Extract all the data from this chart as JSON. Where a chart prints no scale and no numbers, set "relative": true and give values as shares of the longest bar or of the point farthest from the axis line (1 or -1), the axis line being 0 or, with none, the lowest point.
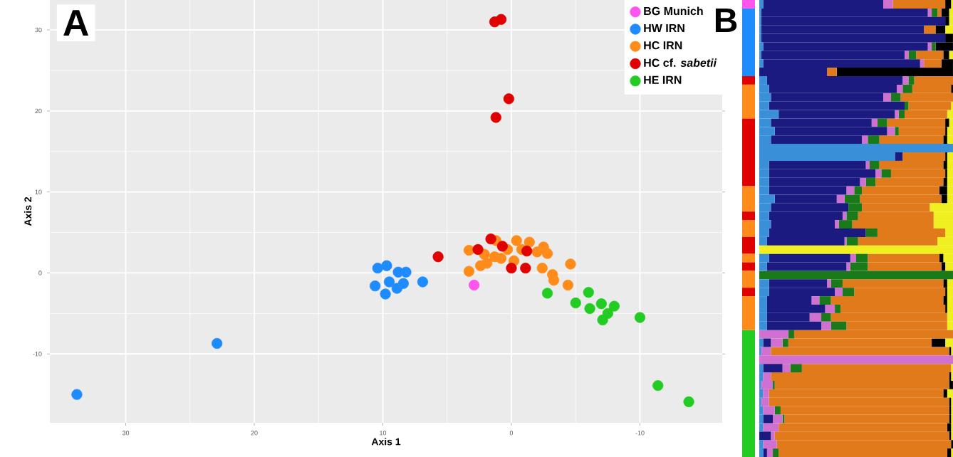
{
  "chart_data": [
    {
      "type": "scatter",
      "xlabel": "Axis 1",
      "ylabel": "Axis 2",
      "xlim": [
        35.9,
        -16.4
      ],
      "ylim": [
        -18.5,
        33.7
      ],
      "xticks": [
        30,
        20,
        10,
        0,
        -10
      ],
      "yticks": [
        -10,
        0,
        10,
        20,
        30
      ],
      "grid": true,
      "legend": "top right",
      "marker": "circle",
      "annotations": [
        "A"
      ],
      "series": [
        {
          "name": "BG Munich",
          "color": "#ff55ee",
          "x": [
            2.9
          ],
          "values": [
            -1.5
          ]
        },
        {
          "name": "HW IRN",
          "color": "#1e8cff",
          "x": [
            33.8,
            22.9,
            10.4,
            9.7,
            10.6,
            9.8,
            9.5,
            8.8,
            8.2,
            8.4,
            8.9,
            6.9
          ],
          "values": [
            -15.0,
            -8.7,
            0.6,
            0.9,
            -1.6,
            -2.6,
            -1.1,
            0.1,
            0.1,
            -1.3,
            -1.9,
            -1.1
          ]
        },
        {
          "name": "HC IRN",
          "color": "#ff8c1a",
          "x": [
            3.3,
            3.3,
            2.4,
            1.9,
            1.3,
            1.2,
            0.3,
            -0.4,
            -0.8,
            -1.4,
            -0.2,
            -2.0,
            -2.5,
            -2.8,
            -2.4,
            -3.2,
            -3.3,
            -4.4,
            -4.6,
            0.8,
            2.1
          ],
          "values": [
            2.8,
            0.2,
            0.9,
            1.2,
            2.0,
            4.0,
            2.9,
            4.0,
            2.9,
            3.8,
            1.5,
            2.6,
            3.2,
            2.4,
            0.6,
            -0.2,
            -0.9,
            -1.5,
            1.1,
            1.8,
            2.3
          ]
        },
        {
          "name": "HC cf. *sabetii*",
          "color": "#e00000",
          "x": [
            1.3,
            0.8,
            0.2,
            1.2,
            5.7,
            2.6,
            1.6,
            0.7,
            -1.2,
            0.0,
            -1.1
          ],
          "values": [
            31.0,
            31.3,
            21.5,
            19.2,
            2.0,
            2.9,
            4.2,
            3.3,
            2.7,
            0.6,
            0.6
          ]
        },
        {
          "name": "HE IRN",
          "color": "#22cc22",
          "x": [
            -2.8,
            -5.0,
            -6.0,
            -6.1,
            -7.0,
            -7.1,
            -7.5,
            -8.0,
            -10.0,
            -11.4,
            -13.8
          ],
          "values": [
            -2.5,
            -3.7,
            -2.4,
            -4.4,
            -3.8,
            -5.8,
            -5.0,
            -4.1,
            -5.5,
            -13.9,
            -15.9
          ]
        }
      ]
    },
    {
      "type": "bar",
      "orientation": "horizontal",
      "stacked": true,
      "relative": true,
      "annotations": [
        "B"
      ],
      "categories": [
        null,
        null,
        null,
        null,
        null,
        null,
        null,
        null,
        null,
        null,
        null,
        null,
        null,
        null,
        null,
        null,
        null,
        null,
        null,
        null,
        null,
        null,
        null,
        null,
        null,
        null,
        null,
        null,
        null,
        null,
        null,
        null,
        null,
        null,
        null,
        null,
        null,
        null,
        null,
        null,
        null,
        null,
        null,
        null,
        null,
        null,
        null,
        null,
        null,
        null,
        null,
        null,
        null,
        null
      ],
      "series": [
        {
          "color": "#3a8fd9",
          "values": [
            0.02,
            0.01,
            0.01,
            0.01,
            0.01,
            0.02,
            0.01,
            0.02,
            0,
            0.04,
            0.05,
            0.06,
            0.05,
            0.1,
            0.06,
            0.08,
            0.06,
            1,
            0.7,
            0.05,
            0.05,
            0.05,
            0.05,
            0.08,
            0.06,
            0.05,
            0.06,
            0.05,
            0.04,
            0,
            0.05,
            0.04,
            0,
            0.05,
            0.05,
            0.04,
            0.04,
            0.04,
            0.04,
            0,
            0.02,
            0.01,
            0,
            0.02,
            0.02,
            0.01,
            0.02,
            0.01,
            0.02,
            0.02,
            0.02,
            0,
            0.02,
            0.02
          ]
        },
        {
          "color": "#1a1a80",
          "values": [
            0.62,
            0.86,
            0.95,
            0.84,
            0.95,
            0.85,
            0.74,
            0.81,
            0.35,
            0.7,
            0.66,
            0.58,
            0.7,
            0.6,
            0.52,
            0.58,
            0.47,
            0,
            0.04,
            0.5,
            0.55,
            0.47,
            0.4,
            0.32,
            0.4,
            0.38,
            0.33,
            0.5,
            0.4,
            0,
            0.42,
            0.41,
            0,
            0.3,
            0.34,
            0.23,
            0.3,
            0.22,
            0.28,
            0,
            0.04,
            0,
            0,
            0.1,
            0,
            0,
            0,
            0,
            0,
            0.05,
            0,
            0.06,
            0,
            0.02
          ]
        },
        {
          "color": "#d070d0",
          "values": [
            0.05,
            0.02,
            0,
            0,
            0,
            0.02,
            0.02,
            0.02,
            0,
            0.03,
            0.03,
            0.04,
            0,
            0.02,
            0.03,
            0.04,
            0.03,
            0,
            0,
            0.02,
            0.03,
            0.03,
            0.04,
            0.04,
            0,
            0.02,
            0.02,
            0,
            0.01,
            0,
            0.03,
            0.02,
            0,
            0.02,
            0.04,
            0.04,
            0.05,
            0.06,
            0.05,
            0.15,
            0.06,
            0.05,
            1,
            0.04,
            0.04,
            0.06,
            0.03,
            0.04,
            0.06,
            0.05,
            0.08,
            0.02,
            0.07,
            0.03
          ]
        },
        {
          "color": "#1a7a1a",
          "values": [
            0,
            0.03,
            0,
            0,
            0,
            0.02,
            0.04,
            0,
            0,
            0.03,
            0.05,
            0.05,
            0.02,
            0.03,
            0.05,
            0.02,
            0.06,
            0,
            0,
            0.05,
            0.05,
            0.05,
            0.04,
            0.08,
            0.07,
            0.06,
            0.07,
            0.06,
            0.06,
            0,
            0.06,
            0.09,
            1,
            0.06,
            0.06,
            0.06,
            0.03,
            0.05,
            0.08,
            0.03,
            0.03,
            0,
            0,
            0.06,
            0,
            0.01,
            0,
            0,
            0.03,
            0.01,
            0,
            0,
            0,
            0.03
          ]
        },
        {
          "color": "#e07a1a",
          "values": [
            0.27,
            0.02,
            0,
            0.06,
            0,
            0,
            0.14,
            0.09,
            0.05,
            0.2,
            0.2,
            0.27,
            0.22,
            0.22,
            0.3,
            0.24,
            0.33,
            0,
            0.22,
            0.33,
            0.28,
            0.35,
            0.4,
            0.42,
            0.35,
            0.39,
            0.42,
            0.35,
            0.41,
            0,
            0.37,
            0.38,
            0,
            0.52,
            0.47,
            0.58,
            0.54,
            0.6,
            0.52,
            0.82,
            0.74,
            0.92,
            0,
            0.77,
            0.92,
            0.9,
            0.9,
            0.93,
            0.87,
            0.85,
            0.87,
            0.9,
            0.9,
            0.87
          ]
        },
        {
          "color": "#000000",
          "values": [
            0.03,
            0.04,
            0.02,
            0.05,
            0.04,
            0.09,
            0.03,
            0.06,
            0.6,
            0,
            0.01,
            0,
            0,
            0,
            0.02,
            0.01,
            0.02,
            0,
            0.01,
            0.02,
            0.01,
            0.02,
            0.04,
            0.03,
            0,
            0,
            0,
            0,
            0,
            0,
            0.02,
            0.02,
            0,
            0.02,
            0.01,
            0.02,
            0.01,
            0,
            0,
            0,
            0.07,
            0.01,
            0,
            0,
            0.01,
            0.02,
            0.02,
            0.01,
            0.01,
            0.01,
            0.02,
            0.01,
            0.01,
            0.02
          ]
        },
        {
          "color": "#f0f020",
          "values": [
            0.01,
            0.02,
            0.02,
            0.04,
            0,
            0,
            0.02,
            0,
            0,
            0,
            0,
            0,
            0.01,
            0.03,
            0.02,
            0.03,
            0.03,
            0,
            0.03,
            0.03,
            0.03,
            0.03,
            0.03,
            0.03,
            0.12,
            0.1,
            0.1,
            0.04,
            0.08,
            1,
            0.05,
            0.04,
            0,
            0.03,
            0.03,
            0.03,
            0.03,
            0.03,
            0.03,
            0,
            0.04,
            0.01,
            0,
            0.01,
            0.01,
            0,
            0.03,
            0.01,
            0.01,
            0.01,
            0.01,
            0.01,
            0,
            0.01
          ]
        }
      ]
    }
  ]
}
